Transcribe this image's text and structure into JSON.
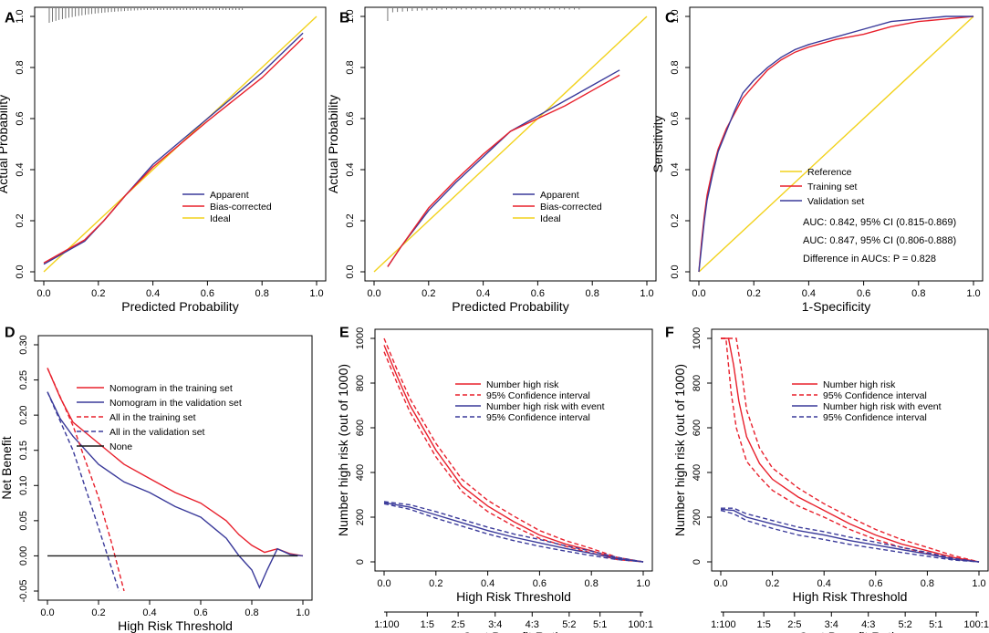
{
  "colors": {
    "red": "#e8202c",
    "blue": "#3a3a9a",
    "yellow": "#f2d21c",
    "black": "#1a1a1a",
    "gray": "#555555"
  },
  "chart_data": [
    {
      "id": "A",
      "panel_label": "A",
      "type": "line",
      "title": "",
      "xlabel": "Predicted Probability",
      "ylabel": "Actual Probability",
      "xlim": [
        0,
        1
      ],
      "ylim": [
        0,
        1
      ],
      "xticks": [
        "0.0",
        "0.2",
        "0.4",
        "0.6",
        "0.8",
        "1.0"
      ],
      "yticks": [
        "0.0",
        "0.2",
        "0.4",
        "0.6",
        "0.8",
        "1.0"
      ],
      "legend": [
        "Apparent",
        "Bias-corrected",
        "Ideal"
      ],
      "series": [
        {
          "name": "Ideal",
          "color_key": "yellow",
          "dash": "",
          "x": [
            0,
            1
          ],
          "y": [
            0,
            1
          ]
        },
        {
          "name": "Apparent",
          "color_key": "blue",
          "dash": "",
          "x": [
            0.0,
            0.15,
            0.22,
            0.3,
            0.4,
            0.6,
            0.8,
            0.95
          ],
          "y": [
            0.03,
            0.12,
            0.2,
            0.3,
            0.42,
            0.6,
            0.78,
            0.935
          ]
        },
        {
          "name": "Bias-corrected",
          "color_key": "red",
          "dash": "",
          "x": [
            0.0,
            0.15,
            0.22,
            0.3,
            0.4,
            0.6,
            0.8,
            0.95
          ],
          "y": [
            0.035,
            0.125,
            0.2,
            0.3,
            0.41,
            0.59,
            0.76,
            0.915
          ]
        }
      ]
    },
    {
      "id": "B",
      "panel_label": "B",
      "type": "line",
      "title": "",
      "xlabel": "Predicted Probability",
      "ylabel": "Actual Probability",
      "xlim": [
        0,
        1
      ],
      "ylim": [
        0,
        1
      ],
      "xticks": [
        "0.0",
        "0.2",
        "0.4",
        "0.6",
        "0.8",
        "1.0"
      ],
      "yticks": [
        "0.0",
        "0.2",
        "0.4",
        "0.6",
        "0.8",
        "1.0"
      ],
      "legend": [
        "Apparent",
        "Bias-corrected",
        "Ideal"
      ],
      "series": [
        {
          "name": "Ideal",
          "color_key": "yellow",
          "dash": "",
          "x": [
            0,
            1
          ],
          "y": [
            0,
            1
          ]
        },
        {
          "name": "Apparent",
          "color_key": "blue",
          "dash": "",
          "x": [
            0.05,
            0.1,
            0.2,
            0.3,
            0.4,
            0.5,
            0.6,
            0.7,
            0.8,
            0.9
          ],
          "y": [
            0.02,
            0.1,
            0.24,
            0.35,
            0.45,
            0.55,
            0.61,
            0.67,
            0.73,
            0.79
          ]
        },
        {
          "name": "Bias-corrected",
          "color_key": "red",
          "dash": "",
          "x": [
            0.05,
            0.1,
            0.2,
            0.3,
            0.4,
            0.5,
            0.6,
            0.7,
            0.8,
            0.9
          ],
          "y": [
            0.02,
            0.1,
            0.25,
            0.36,
            0.46,
            0.55,
            0.6,
            0.65,
            0.71,
            0.77
          ]
        }
      ]
    },
    {
      "id": "C",
      "panel_label": "C",
      "type": "line",
      "title": "",
      "xlabel": "1-Specificity",
      "ylabel": "Sensitivity",
      "xlim": [
        0,
        1
      ],
      "ylim": [
        0,
        1
      ],
      "xticks": [
        "0.0",
        "0.2",
        "0.4",
        "0.6",
        "0.8",
        "1.0"
      ],
      "yticks": [
        "0.0",
        "0.2",
        "0.4",
        "0.6",
        "0.8",
        "1.0"
      ],
      "legend": [
        "Reference",
        "Training set",
        "Validation set"
      ],
      "annotations": [
        {
          "text": "AUC: 0.842, 95% CI (0.815-0.869)",
          "color_key": "red"
        },
        {
          "text": "AUC: 0.847, 95% CI (0.806-0.888)",
          "color_key": "blue"
        },
        {
          "text": "Difference in AUCs: P = 0.828",
          "color_key": "black"
        }
      ],
      "series": [
        {
          "name": "Reference",
          "color_key": "yellow",
          "dash": "",
          "x": [
            0,
            1
          ],
          "y": [
            0,
            1
          ]
        },
        {
          "name": "Training set",
          "color_key": "red",
          "dash": "",
          "x": [
            0,
            0.01,
            0.02,
            0.03,
            0.05,
            0.07,
            0.1,
            0.13,
            0.16,
            0.2,
            0.25,
            0.3,
            0.35,
            0.4,
            0.5,
            0.6,
            0.7,
            0.8,
            0.9,
            1.0
          ],
          "y": [
            0,
            0.12,
            0.22,
            0.3,
            0.4,
            0.48,
            0.56,
            0.62,
            0.68,
            0.73,
            0.79,
            0.83,
            0.86,
            0.88,
            0.91,
            0.93,
            0.96,
            0.98,
            0.99,
            1.0
          ]
        },
        {
          "name": "Validation set",
          "color_key": "blue",
          "dash": "",
          "x": [
            0,
            0.01,
            0.02,
            0.03,
            0.05,
            0.07,
            0.1,
            0.13,
            0.16,
            0.2,
            0.25,
            0.3,
            0.35,
            0.4,
            0.5,
            0.6,
            0.7,
            0.8,
            0.9,
            1.0
          ],
          "y": [
            0,
            0.1,
            0.2,
            0.28,
            0.38,
            0.47,
            0.55,
            0.63,
            0.7,
            0.75,
            0.8,
            0.84,
            0.87,
            0.89,
            0.92,
            0.95,
            0.98,
            0.99,
            1.0,
            1.0
          ]
        }
      ]
    },
    {
      "id": "D",
      "panel_label": "D",
      "type": "line",
      "title": "",
      "xlabel": "High Risk Threshold",
      "ylabel": "Net Benefit",
      "xlim": [
        0,
        1
      ],
      "ylim": [
        -0.05,
        0.3
      ],
      "xticks": [
        "0.0",
        "0.2",
        "0.4",
        "0.6",
        "0.8",
        "1.0"
      ],
      "yticks": [
        "-0.05",
        "0.00",
        "0.05",
        "0.10",
        "0.15",
        "0.20",
        "0.25",
        "0.30"
      ],
      "legend": [
        "Nomogram in the training set",
        "Nomogram in the validation set",
        "All in the training set",
        "All in the validation set",
        "None"
      ],
      "series": [
        {
          "name": "Nomogram in the training set",
          "color_key": "red",
          "dash": "",
          "x": [
            0.0,
            0.05,
            0.1,
            0.2,
            0.3,
            0.4,
            0.5,
            0.6,
            0.7,
            0.75,
            0.8,
            0.85,
            0.9,
            0.95,
            1.0
          ],
          "y": [
            0.267,
            0.225,
            0.19,
            0.16,
            0.13,
            0.11,
            0.09,
            0.075,
            0.05,
            0.03,
            0.015,
            0.005,
            0.01,
            0.003,
            0.0
          ]
        },
        {
          "name": "Nomogram in the validation set",
          "color_key": "blue",
          "dash": "",
          "x": [
            0.0,
            0.05,
            0.1,
            0.2,
            0.3,
            0.4,
            0.5,
            0.6,
            0.65,
            0.7,
            0.75,
            0.8,
            0.83,
            0.86,
            0.9,
            0.95,
            1.0
          ],
          "y": [
            0.233,
            0.195,
            0.17,
            0.13,
            0.105,
            0.09,
            0.07,
            0.055,
            0.04,
            0.025,
            0.0,
            -0.02,
            -0.045,
            -0.02,
            0.01,
            0.002,
            0.0
          ]
        },
        {
          "name": "All in the training set",
          "color_key": "red",
          "dash": "5,3",
          "x": [
            0.0,
            0.1,
            0.2,
            0.25,
            0.3
          ],
          "y": [
            0.267,
            0.185,
            0.083,
            0.02,
            -0.05
          ]
        },
        {
          "name": "All in the validation set",
          "color_key": "blue",
          "dash": "5,3",
          "x": [
            0.0,
            0.1,
            0.2,
            0.28
          ],
          "y": [
            0.233,
            0.15,
            0.04,
            -0.05
          ]
        },
        {
          "name": "None",
          "color_key": "black",
          "dash": "",
          "x": [
            0.0,
            0.98
          ],
          "y": [
            0.0,
            0.0
          ]
        }
      ]
    },
    {
      "id": "E",
      "panel_label": "E",
      "type": "line",
      "title": "",
      "xlabel": "High Risk Threshold",
      "ylabel": "Number high risk (out of 1000)",
      "x2label": "Cost:Benefit Ratio",
      "xlim": [
        0,
        1
      ],
      "ylim": [
        0,
        1000
      ],
      "xticks": [
        "0.0",
        "0.2",
        "0.4",
        "0.6",
        "0.8",
        "1.0"
      ],
      "yticks": [
        "0",
        "200",
        "400",
        "600",
        "800",
        "1000"
      ],
      "x2ticks": [
        "1:100",
        "1:5",
        "2:5",
        "3:4",
        "4:3",
        "5:2",
        "5:1",
        "100:1"
      ],
      "legend": [
        "Number high risk",
        "95% Confidence interval",
        "Number high risk with event",
        "95% Confidence interval"
      ],
      "series": [
        {
          "name": "Number high risk",
          "color_key": "red",
          "dash": "",
          "x": [
            0.0,
            0.05,
            0.1,
            0.2,
            0.3,
            0.4,
            0.5,
            0.6,
            0.7,
            0.8,
            0.9,
            1.0
          ],
          "y": [
            970,
            830,
            700,
            500,
            340,
            250,
            180,
            120,
            80,
            50,
            15,
            0
          ]
        },
        {
          "name": "95% Confidence interval",
          "color_key": "red",
          "dash": "5,3",
          "x": [
            0.0,
            0.05,
            0.1,
            0.2,
            0.3,
            0.4,
            0.5,
            0.6,
            0.7,
            0.8,
            0.9,
            1.0
          ],
          "y": [
            1000,
            860,
            730,
            530,
            370,
            275,
            205,
            140,
            95,
            60,
            20,
            0
          ]
        },
        {
          "name": "95% Confidence interval",
          "color_key": "red",
          "dash": "5,3",
          "x": [
            0.0,
            0.05,
            0.1,
            0.2,
            0.3,
            0.4,
            0.5,
            0.6,
            0.7,
            0.8,
            0.9,
            1.0
          ],
          "y": [
            940,
            800,
            670,
            470,
            315,
            225,
            160,
            105,
            70,
            40,
            10,
            0
          ]
        },
        {
          "name": "Number high risk with event",
          "color_key": "blue",
          "dash": "",
          "x": [
            0.0,
            0.1,
            0.2,
            0.3,
            0.4,
            0.5,
            0.6,
            0.7,
            0.8,
            0.9,
            1.0
          ],
          "y": [
            265,
            245,
            210,
            175,
            140,
            110,
            85,
            60,
            38,
            15,
            0
          ]
        },
        {
          "name": "95% Confidence interval",
          "color_key": "blue",
          "dash": "5,3",
          "x": [
            0.0,
            0.1,
            0.2,
            0.3,
            0.4,
            0.5,
            0.6,
            0.7,
            0.8,
            0.9,
            1.0
          ],
          "y": [
            270,
            255,
            225,
            190,
            155,
            125,
            100,
            72,
            48,
            20,
            0
          ]
        },
        {
          "name": "95% Confidence interval",
          "color_key": "blue",
          "dash": "5,3",
          "x": [
            0.0,
            0.1,
            0.2,
            0.3,
            0.4,
            0.5,
            0.6,
            0.7,
            0.8,
            0.9,
            1.0
          ],
          "y": [
            260,
            235,
            195,
            160,
            125,
            95,
            70,
            48,
            28,
            10,
            0
          ]
        }
      ]
    },
    {
      "id": "F",
      "panel_label": "F",
      "type": "line",
      "title": "",
      "xlabel": "High Risk Threshold",
      "ylabel": "Number high risk (out of 1000)",
      "x2label": "Cost:Benefit Ratio",
      "xlim": [
        0,
        1
      ],
      "ylim": [
        0,
        1000
      ],
      "xticks": [
        "0.0",
        "0.2",
        "0.4",
        "0.6",
        "0.8",
        "1.0"
      ],
      "yticks": [
        "0",
        "200",
        "400",
        "600",
        "800",
        "1000"
      ],
      "x2ticks": [
        "1:100",
        "1:5",
        "2:5",
        "3:4",
        "4:3",
        "5:2",
        "5:1",
        "100:1"
      ],
      "legend": [
        "Number high risk",
        "95% Confidence interval",
        "Number high risk with event",
        "95% Confidence interval"
      ],
      "series": [
        {
          "name": "Number high risk",
          "color_key": "red",
          "dash": "",
          "x": [
            0.0,
            0.03,
            0.05,
            0.07,
            0.1,
            0.15,
            0.2,
            0.3,
            0.4,
            0.5,
            0.6,
            0.7,
            0.8,
            0.9,
            1.0
          ],
          "y": [
            1000,
            1000,
            880,
            720,
            560,
            440,
            370,
            290,
            230,
            170,
            120,
            80,
            50,
            20,
            0
          ]
        },
        {
          "name": "95% Confidence interval",
          "color_key": "red",
          "dash": "5,3",
          "x": [
            0.0,
            0.04,
            0.06,
            0.08,
            0.1,
            0.15,
            0.2,
            0.3,
            0.4,
            0.5,
            0.6,
            0.7,
            0.8,
            0.9,
            1.0
          ],
          "y": [
            1000,
            1000,
            1000,
            860,
            680,
            510,
            420,
            330,
            260,
            200,
            145,
            100,
            65,
            28,
            0
          ]
        },
        {
          "name": "95% Confidence interval",
          "color_key": "red",
          "dash": "5,3",
          "x": [
            0.0,
            0.02,
            0.04,
            0.06,
            0.1,
            0.15,
            0.2,
            0.3,
            0.4,
            0.5,
            0.6,
            0.7,
            0.8,
            0.9,
            1.0
          ],
          "y": [
            1000,
            1000,
            760,
            600,
            450,
            380,
            320,
            250,
            200,
            145,
            100,
            65,
            38,
            12,
            0
          ]
        },
        {
          "name": "Number high risk with event",
          "color_key": "blue",
          "dash": "",
          "x": [
            0.0,
            0.05,
            0.1,
            0.2,
            0.3,
            0.4,
            0.5,
            0.6,
            0.7,
            0.8,
            0.9,
            1.0
          ],
          "y": [
            235,
            230,
            200,
            170,
            140,
            120,
            95,
            75,
            55,
            35,
            12,
            0
          ]
        },
        {
          "name": "95% Confidence interval",
          "color_key": "blue",
          "dash": "5,3",
          "x": [
            0.0,
            0.05,
            0.1,
            0.2,
            0.3,
            0.4,
            0.5,
            0.6,
            0.7,
            0.8,
            0.9,
            1.0
          ],
          "y": [
            240,
            240,
            215,
            185,
            155,
            135,
            110,
            88,
            65,
            42,
            16,
            0
          ]
        },
        {
          "name": "95% Confidence interval",
          "color_key": "blue",
          "dash": "5,3",
          "x": [
            0.0,
            0.05,
            0.1,
            0.2,
            0.3,
            0.4,
            0.5,
            0.6,
            0.7,
            0.8,
            0.9,
            1.0
          ],
          "y": [
            230,
            215,
            185,
            150,
            120,
            100,
            78,
            60,
            42,
            25,
            8,
            0
          ]
        }
      ]
    }
  ]
}
